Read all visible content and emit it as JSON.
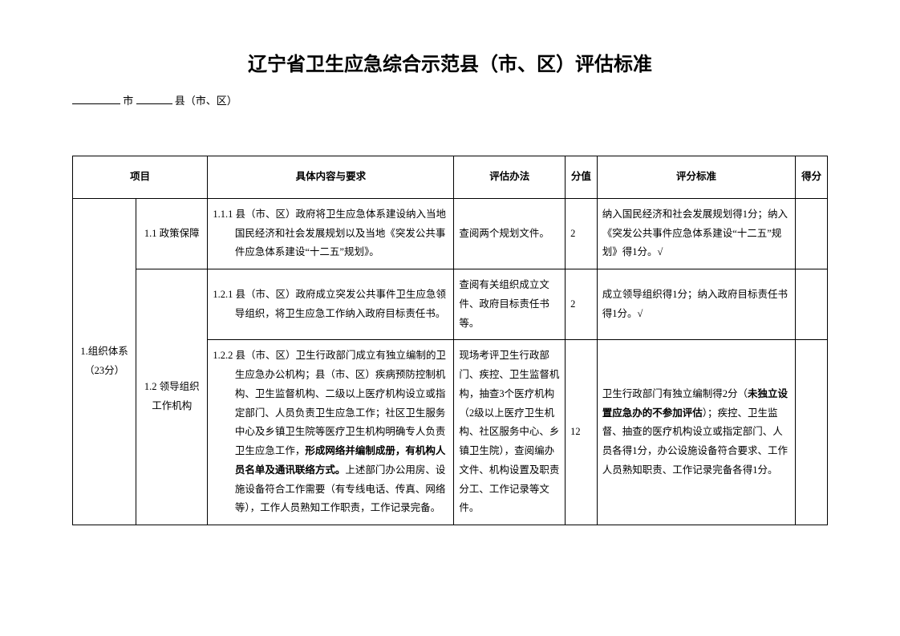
{
  "title": "辽宁省卫生应急综合示范县（市、区）评估标准",
  "subheader": {
    "city_label": "市",
    "county_label": "县（市、区）"
  },
  "headers": {
    "project": "项目",
    "content": "具体内容与要求",
    "method": "评估办法",
    "score": "分值",
    "criteria": "评分标准",
    "got": "得分"
  },
  "section": {
    "project_name": "1.组织体系（23分）",
    "sub1": {
      "name": "1.1 政策保障",
      "row1": {
        "content": "1.1.1 县（市、区）政府将卫生应急体系建设纳入当地国民经济和社会发展规划以及当地《突发公共事件应急体系建设“十二五”规划》。",
        "method": "查阅两个规划文件。",
        "score": "2",
        "criteria": "纳入国民经济和社会发展规划得1分；纳入《突发公共事件应急体系建设“十二五”规划》得1分。√"
      }
    },
    "sub2": {
      "name": "1.2 领导组织工作机构",
      "row1": {
        "content": "1.2.1 县（市、区）政府成立突发公共事件卫生应急领导组织，将卫生应急工作纳入政府目标责任书。",
        "method": "查阅有关组织成立文件、政府目标责任书等。",
        "score": "2",
        "criteria": "成立领导组织得1分；纳入政府目标责任书得1分。√"
      },
      "row2": {
        "content_prefix": "1.2.2 县（市、区）卫生行政部门成立有独立编制的卫生应急办公机构；县（市、区）疾病预防控制机构、卫生监督机构、二级以上医疗机构设立或指定部门、人员负责卫生应急工作；社区卫生服务中心及乡镇卫生院等医疗卫生机构明确专人负责卫生应急工作，",
        "content_bold": "形成网络并编制成册，有机构人员名单及通讯联络方式。",
        "content_suffix": "上述部门办公用房、设施设备符合工作需要（有专线电话、传真、网络等），工作人员熟知工作职责，工作记录完备。",
        "method": "现场考评卫生行政部门、疾控、卫生监督机构，抽查3个医疗机构（2级以上医疗卫生机构、社区服务中心、乡镇卫生院），查阅编办文件、机构设置及职责分工、工作记录等文件。",
        "score": "12",
        "criteria_prefix": "卫生行政部门有独立编制得2分（",
        "criteria_bold": "未独立设置应急办的不参加评估",
        "criteria_suffix": "）；疾控、卫生监督、抽查的医疗机构设立或指定部门、人员各得1分，办公设施设备符合要求、工作人员熟知职责、工作记录完备各得1分。"
      }
    }
  }
}
